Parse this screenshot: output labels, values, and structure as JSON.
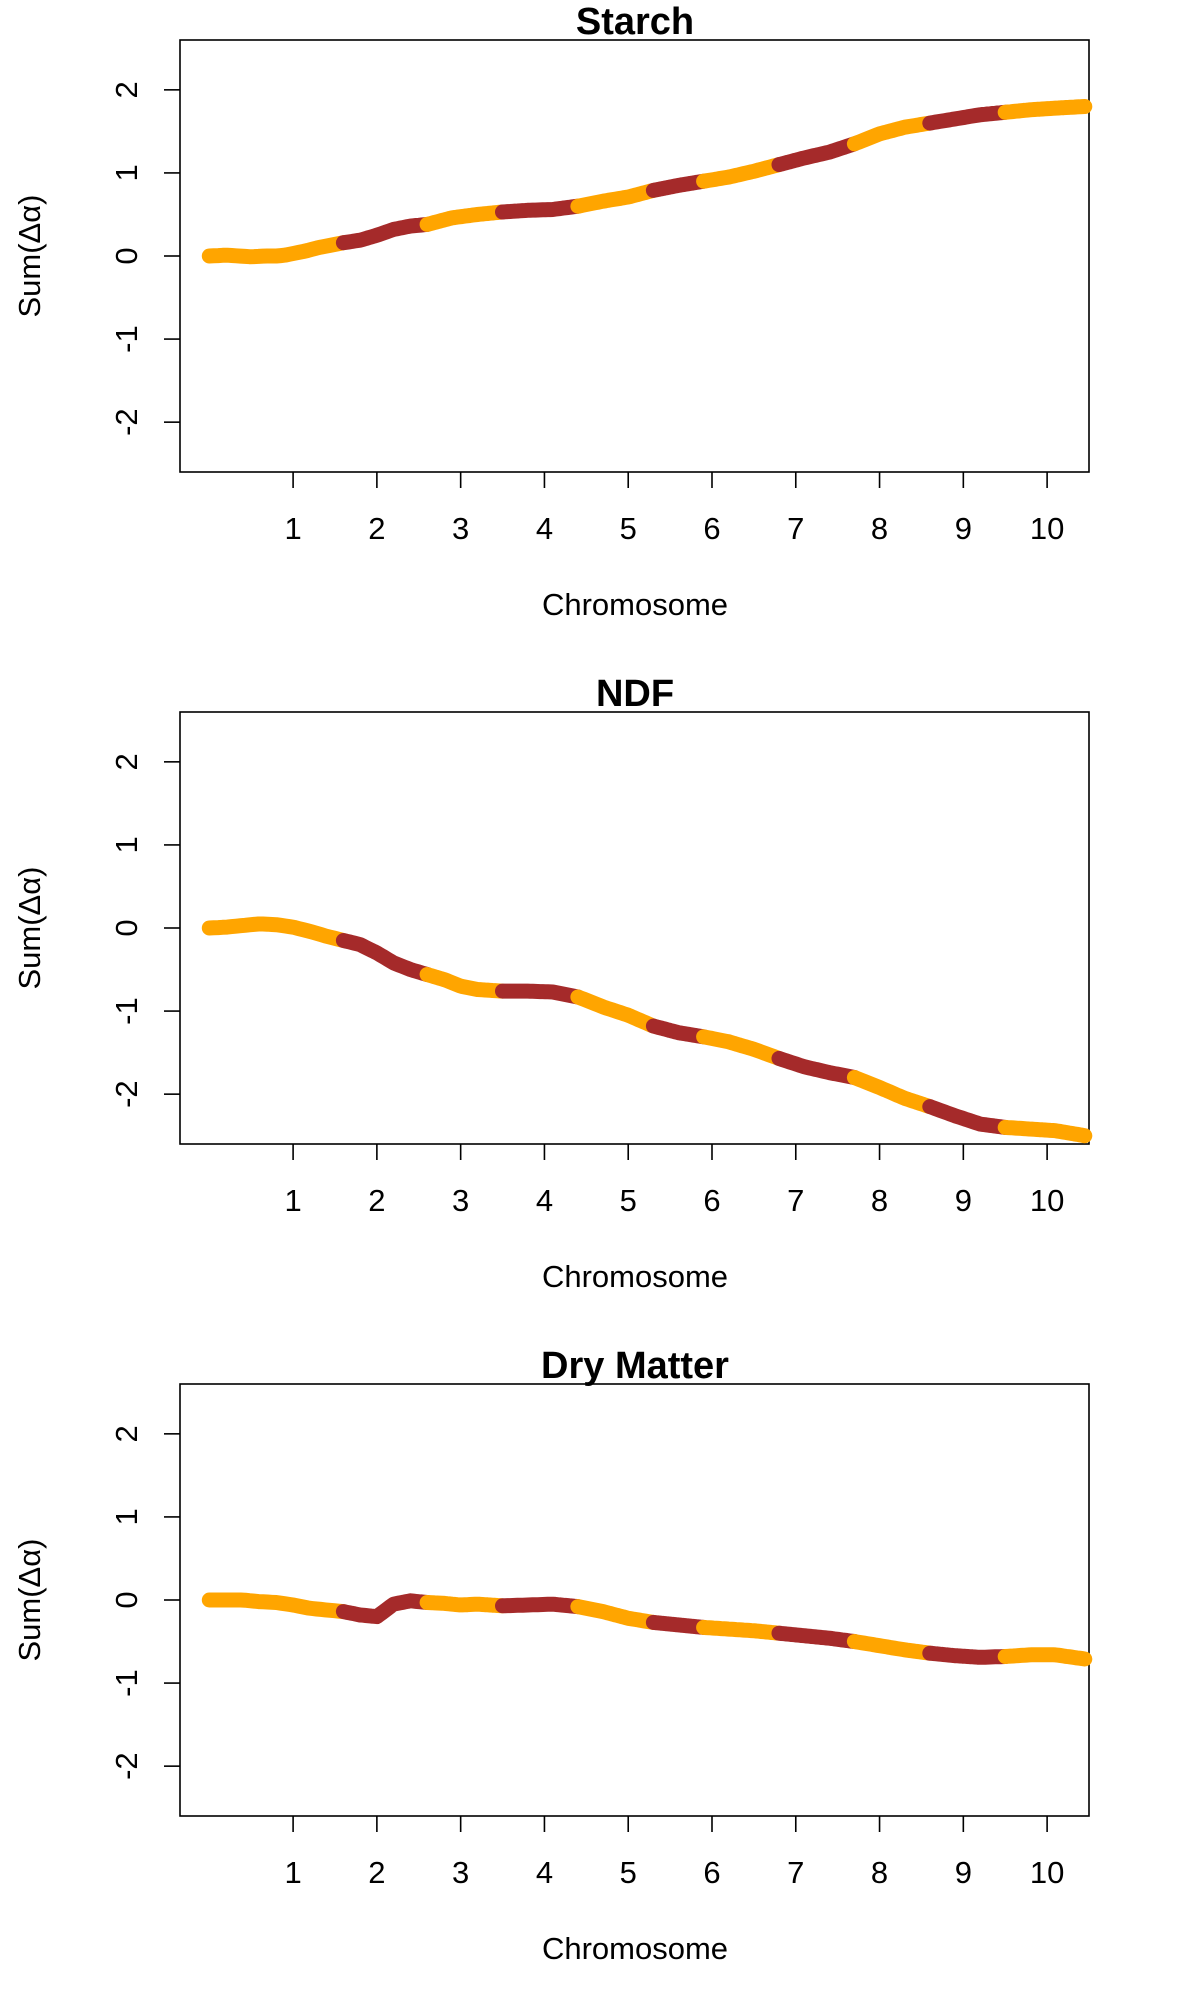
{
  "chart_data": [
    {
      "type": "line",
      "title": "Starch",
      "xlabel": "Chromosome",
      "ylabel": "Sum(Δα)",
      "ylim": [
        -2.6,
        2.6
      ],
      "yticks": [
        -2,
        -1,
        0,
        1,
        2
      ],
      "xlim": [
        -0.35,
        10.5
      ],
      "xticks": [
        1,
        2,
        3,
        4,
        5,
        6,
        7,
        8,
        9,
        10
      ],
      "colors": [
        "#FFA500",
        "#A52A2A"
      ],
      "grid": false,
      "x": [
        0.0,
        0.2,
        0.35,
        0.5,
        0.65,
        0.8,
        0.9,
        1.0,
        1.15,
        1.3,
        1.45,
        1.6,
        1.8,
        2.0,
        2.2,
        2.4,
        2.6,
        2.9,
        3.2,
        3.5,
        3.8,
        4.1,
        4.4,
        4.7,
        5.0,
        5.3,
        5.6,
        5.9,
        6.2,
        6.5,
        6.8,
        7.1,
        7.4,
        7.7,
        8.0,
        8.3,
        8.6,
        8.9,
        9.2,
        9.5,
        9.8,
        10.1,
        10.45
      ],
      "y": [
        0.0,
        0.01,
        0.0,
        -0.01,
        0.0,
        0.0,
        0.01,
        0.03,
        0.06,
        0.1,
        0.13,
        0.16,
        0.19,
        0.25,
        0.32,
        0.36,
        0.38,
        0.46,
        0.5,
        0.53,
        0.55,
        0.56,
        0.6,
        0.66,
        0.71,
        0.79,
        0.85,
        0.9,
        0.95,
        1.02,
        1.1,
        1.18,
        1.25,
        1.35,
        1.47,
        1.55,
        1.6,
        1.65,
        1.7,
        1.73,
        1.76,
        1.78,
        1.8
      ],
      "segment_starts": [
        0.0,
        1.6,
        2.6,
        3.5,
        4.4,
        5.3,
        5.9,
        6.8,
        7.7,
        8.6,
        9.5
      ],
      "segment_colors": [
        "#FFA500",
        "#A52A2A",
        "#FFA500",
        "#A52A2A",
        "#FFA500",
        "#A52A2A",
        "#FFA500",
        "#A52A2A",
        "#FFA500",
        "#A52A2A",
        "#FFA500"
      ]
    },
    {
      "type": "line",
      "title": "NDF",
      "xlabel": "Chromosome",
      "ylabel": "Sum(Δα)",
      "ylim": [
        -2.6,
        2.6
      ],
      "yticks": [
        -2,
        -1,
        0,
        1,
        2
      ],
      "xlim": [
        -0.35,
        10.5
      ],
      "xticks": [
        1,
        2,
        3,
        4,
        5,
        6,
        7,
        8,
        9,
        10
      ],
      "colors": [
        "#FFA500",
        "#A52A2A"
      ],
      "grid": false,
      "x": [
        0.0,
        0.2,
        0.4,
        0.6,
        0.8,
        1.0,
        1.2,
        1.4,
        1.6,
        1.8,
        2.0,
        2.2,
        2.4,
        2.6,
        2.8,
        3.0,
        3.2,
        3.5,
        3.8,
        4.1,
        4.4,
        4.7,
        5.0,
        5.3,
        5.6,
        5.9,
        6.2,
        6.5,
        6.8,
        7.1,
        7.4,
        7.7,
        8.0,
        8.3,
        8.6,
        8.9,
        9.2,
        9.5,
        9.8,
        10.1,
        10.45
      ],
      "y": [
        0.0,
        0.01,
        0.03,
        0.05,
        0.04,
        0.01,
        -0.04,
        -0.1,
        -0.15,
        -0.2,
        -0.3,
        -0.42,
        -0.5,
        -0.56,
        -0.62,
        -0.7,
        -0.74,
        -0.76,
        -0.76,
        -0.77,
        -0.83,
        -0.95,
        -1.05,
        -1.18,
        -1.26,
        -1.31,
        -1.37,
        -1.46,
        -1.57,
        -1.67,
        -1.74,
        -1.8,
        -1.92,
        -2.05,
        -2.15,
        -2.26,
        -2.36,
        -2.4,
        -2.42,
        -2.44,
        -2.5
      ],
      "segment_starts": [
        0.0,
        1.6,
        2.6,
        3.5,
        4.4,
        5.3,
        5.9,
        6.8,
        7.7,
        8.6,
        9.5
      ],
      "segment_colors": [
        "#FFA500",
        "#A52A2A",
        "#FFA500",
        "#A52A2A",
        "#FFA500",
        "#A52A2A",
        "#FFA500",
        "#A52A2A",
        "#FFA500",
        "#A52A2A",
        "#FFA500"
      ]
    },
    {
      "type": "line",
      "title": "Dry Matter",
      "xlabel": "Chromosome",
      "ylabel": "Sum(Δα)",
      "ylim": [
        -2.6,
        2.6
      ],
      "yticks": [
        -2,
        -1,
        0,
        1,
        2
      ],
      "xlim": [
        -0.35,
        10.5
      ],
      "xticks": [
        1,
        2,
        3,
        4,
        5,
        6,
        7,
        8,
        9,
        10
      ],
      "colors": [
        "#FFA500",
        "#A52A2A"
      ],
      "grid": false,
      "x": [
        0.0,
        0.2,
        0.4,
        0.6,
        0.8,
        1.0,
        1.2,
        1.4,
        1.6,
        1.8,
        2.0,
        2.2,
        2.4,
        2.6,
        2.8,
        3.0,
        3.2,
        3.5,
        3.8,
        4.1,
        4.4,
        4.7,
        5.0,
        5.3,
        5.6,
        5.9,
        6.2,
        6.5,
        6.8,
        7.1,
        7.4,
        7.7,
        8.0,
        8.3,
        8.6,
        8.9,
        9.2,
        9.5,
        9.8,
        10.1,
        10.45
      ],
      "y": [
        0.0,
        0.0,
        0.0,
        -0.02,
        -0.03,
        -0.06,
        -0.1,
        -0.12,
        -0.14,
        -0.18,
        -0.2,
        -0.05,
        -0.01,
        -0.03,
        -0.04,
        -0.06,
        -0.05,
        -0.07,
        -0.06,
        -0.05,
        -0.08,
        -0.14,
        -0.22,
        -0.27,
        -0.3,
        -0.33,
        -0.35,
        -0.37,
        -0.4,
        -0.43,
        -0.46,
        -0.5,
        -0.55,
        -0.6,
        -0.64,
        -0.67,
        -0.69,
        -0.68,
        -0.66,
        -0.66,
        -0.71
      ],
      "segment_starts": [
        0.0,
        1.6,
        2.6,
        3.5,
        4.4,
        5.3,
        5.9,
        6.8,
        7.7,
        8.6,
        9.5
      ],
      "segment_colors": [
        "#FFA500",
        "#A52A2A",
        "#FFA500",
        "#A52A2A",
        "#FFA500",
        "#A52A2A",
        "#FFA500",
        "#A52A2A",
        "#FFA500",
        "#A52A2A",
        "#FFA500"
      ]
    }
  ]
}
